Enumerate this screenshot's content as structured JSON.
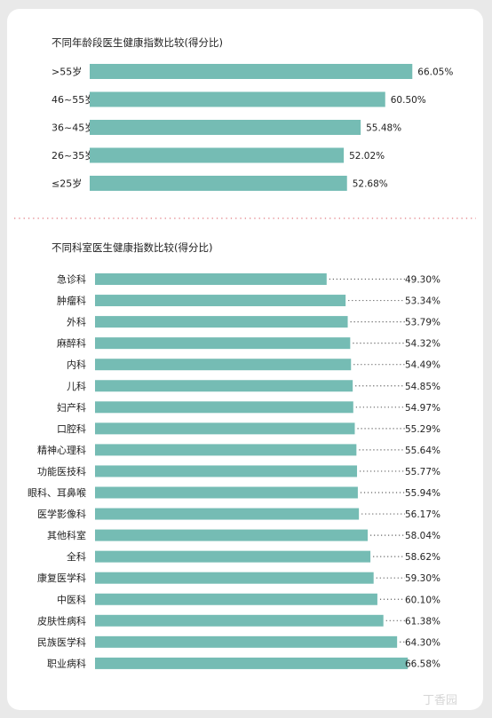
{
  "watermark": "丁香园",
  "chart_data": [
    {
      "type": "bar",
      "orientation": "horizontal",
      "title": "不同年龄段医生健康指数比较(得分比)",
      "categories": [
        ">55岁",
        "46~55岁",
        "36~45岁",
        "26~35岁",
        "≤25岁"
      ],
      "values": [
        66.05,
        60.5,
        55.48,
        52.02,
        52.68
      ],
      "value_labels": [
        "66.05%",
        "60.50%",
        "55.48%",
        "52.02%",
        "52.68%"
      ],
      "bar_color": "#75bcb4"
    },
    {
      "type": "bar",
      "orientation": "horizontal",
      "title": "不同科室医生健康指数比较(得分比)",
      "categories": [
        "急诊科",
        "肿瘤科",
        "外科",
        "麻醉科",
        "内科",
        "儿科",
        "妇产科",
        "口腔科",
        "精神心理科",
        "功能医技科",
        "眼科、耳鼻喉",
        "医学影像科",
        "其他科室",
        "全科",
        "康复医学科",
        "中医科",
        "皮肤性病科",
        "民族医学科",
        "职业病科"
      ],
      "values": [
        49.3,
        53.34,
        53.79,
        54.32,
        54.49,
        54.85,
        54.97,
        55.29,
        55.64,
        55.77,
        55.94,
        56.17,
        58.04,
        58.62,
        59.3,
        60.1,
        61.38,
        64.3,
        66.58
      ],
      "value_labels": [
        "49.30%",
        "53.34%",
        "53.79%",
        "54.32%",
        "54.49%",
        "54.85%",
        "54.97%",
        "55.29%",
        "55.64%",
        "55.77%",
        "55.94%",
        "56.17%",
        "58.04%",
        "58.62%",
        "59.30%",
        "60.10%",
        "61.38%",
        "64.30%",
        "66.58%"
      ],
      "bar_color": "#75bcb4",
      "leader_lines": true
    }
  ]
}
